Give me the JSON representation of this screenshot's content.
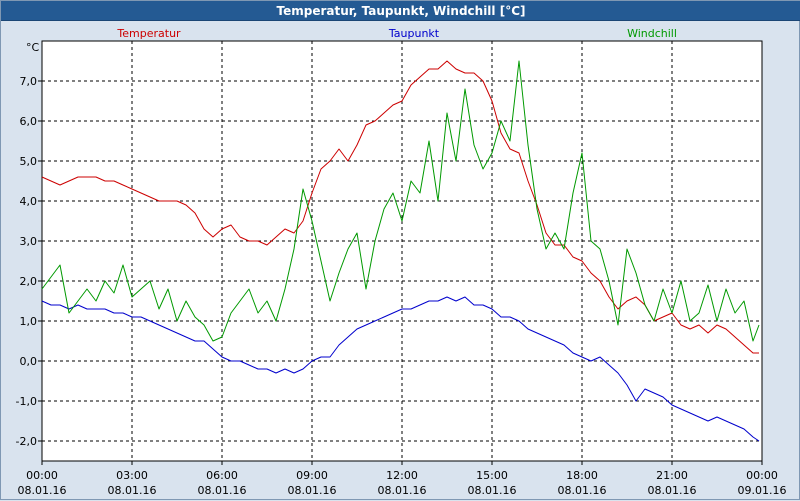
{
  "window": {
    "title": "Temperatur, Taupunkt, Windchill [°C]"
  },
  "colors": {
    "temperatur": "#cc0000",
    "taupunkt": "#0000cc",
    "windchill": "#009900",
    "titlebar": "#245a93",
    "frame_bg": "#d9e3ee",
    "plot_bg": "#ffffff",
    "grid": "#000000"
  },
  "chart_data": {
    "type": "line",
    "title": "Temperatur, Taupunkt, Windchill [°C]",
    "ylabel": "°C",
    "xlabel": "",
    "ylim": [
      -2.5,
      8.0
    ],
    "y_ticks": [
      -2,
      -1,
      0,
      1,
      2,
      3,
      4,
      5,
      6,
      7
    ],
    "y_tick_labels": [
      "-2,0",
      "-1,0",
      "0,0",
      "1,0",
      "2,0",
      "3,0",
      "4,0",
      "5,0",
      "6,0",
      "7,0"
    ],
    "x_ticks": [
      0,
      3,
      6,
      9,
      12,
      15,
      18,
      21,
      24
    ],
    "x_tick_time": [
      "00:00",
      "03:00",
      "06:00",
      "09:00",
      "12:00",
      "15:00",
      "18:00",
      "21:00",
      "00:00"
    ],
    "x_tick_date": [
      "08.01.16",
      "08.01.16",
      "08.01.16",
      "08.01.16",
      "08.01.16",
      "08.01.16",
      "08.01.16",
      "08.01.16",
      "09.01.16"
    ],
    "xlim": [
      0,
      24
    ],
    "grid": true,
    "legend_placement": "top",
    "series": [
      {
        "name": "Temperatur",
        "x": [
          0,
          0.3,
          0.6,
          0.9,
          1.2,
          1.5,
          1.8,
          2.1,
          2.4,
          2.7,
          3.0,
          3.3,
          3.6,
          3.9,
          4.2,
          4.5,
          4.8,
          5.1,
          5.4,
          5.7,
          6.0,
          6.3,
          6.6,
          6.9,
          7.2,
          7.5,
          7.8,
          8.1,
          8.4,
          8.7,
          9.0,
          9.3,
          9.6,
          9.9,
          10.2,
          10.5,
          10.8,
          11.1,
          11.4,
          11.7,
          12.0,
          12.3,
          12.6,
          12.9,
          13.2,
          13.5,
          13.8,
          14.1,
          14.4,
          14.7,
          15.0,
          15.3,
          15.6,
          15.9,
          16.2,
          16.5,
          16.8,
          17.1,
          17.4,
          17.7,
          18.0,
          18.3,
          18.6,
          18.9,
          19.2,
          19.5,
          19.8,
          20.1,
          20.4,
          20.7,
          21.0,
          21.3,
          21.6,
          21.9,
          22.2,
          22.5,
          22.8,
          23.1,
          23.4,
          23.7,
          23.9
        ],
        "values": [
          4.6,
          4.5,
          4.4,
          4.5,
          4.6,
          4.6,
          4.6,
          4.5,
          4.5,
          4.4,
          4.3,
          4.2,
          4.1,
          4.0,
          4.0,
          4.0,
          3.9,
          3.7,
          3.3,
          3.1,
          3.3,
          3.4,
          3.1,
          3.0,
          3.0,
          2.9,
          3.1,
          3.3,
          3.2,
          3.5,
          4.2,
          4.8,
          5.0,
          5.3,
          5.0,
          5.4,
          5.9,
          6.0,
          6.2,
          6.4,
          6.5,
          6.9,
          7.1,
          7.3,
          7.3,
          7.5,
          7.3,
          7.2,
          7.2,
          7.0,
          6.5,
          5.7,
          5.3,
          5.2,
          4.5,
          3.9,
          3.2,
          2.9,
          2.9,
          2.6,
          2.5,
          2.2,
          2.0,
          1.6,
          1.3,
          1.5,
          1.6,
          1.4,
          1.0,
          1.1,
          1.2,
          0.9,
          0.8,
          0.9,
          0.7,
          0.9,
          0.8,
          0.6,
          0.4,
          0.2,
          0.2
        ]
      },
      {
        "name": "Taupunkt",
        "x": [
          0,
          0.3,
          0.6,
          0.9,
          1.2,
          1.5,
          1.8,
          2.1,
          2.4,
          2.7,
          3.0,
          3.3,
          3.6,
          3.9,
          4.2,
          4.5,
          4.8,
          5.1,
          5.4,
          5.7,
          6.0,
          6.3,
          6.6,
          6.9,
          7.2,
          7.5,
          7.8,
          8.1,
          8.4,
          8.7,
          9.0,
          9.3,
          9.6,
          9.9,
          10.2,
          10.5,
          10.8,
          11.1,
          11.4,
          11.7,
          12.0,
          12.3,
          12.6,
          12.9,
          13.2,
          13.5,
          13.8,
          14.1,
          14.4,
          14.7,
          15.0,
          15.3,
          15.6,
          15.9,
          16.2,
          16.5,
          16.8,
          17.1,
          17.4,
          17.7,
          18.0,
          18.3,
          18.6,
          18.9,
          19.2,
          19.5,
          19.8,
          20.1,
          20.4,
          20.7,
          21.0,
          21.3,
          21.6,
          21.9,
          22.2,
          22.5,
          22.8,
          23.1,
          23.4,
          23.7,
          23.9
        ],
        "values": [
          1.5,
          1.4,
          1.4,
          1.3,
          1.4,
          1.3,
          1.3,
          1.3,
          1.2,
          1.2,
          1.1,
          1.1,
          1.0,
          0.9,
          0.8,
          0.7,
          0.6,
          0.5,
          0.5,
          0.3,
          0.1,
          0.0,
          0.0,
          -0.1,
          -0.2,
          -0.2,
          -0.3,
          -0.2,
          -0.3,
          -0.2,
          0.0,
          0.1,
          0.1,
          0.4,
          0.6,
          0.8,
          0.9,
          1.0,
          1.1,
          1.2,
          1.3,
          1.3,
          1.4,
          1.5,
          1.5,
          1.6,
          1.5,
          1.6,
          1.4,
          1.4,
          1.3,
          1.1,
          1.1,
          1.0,
          0.8,
          0.7,
          0.6,
          0.5,
          0.4,
          0.2,
          0.1,
          0.0,
          0.1,
          -0.1,
          -0.3,
          -0.6,
          -1.0,
          -0.7,
          -0.8,
          -0.9,
          -1.1,
          -1.2,
          -1.3,
          -1.4,
          -1.5,
          -1.4,
          -1.5,
          -1.6,
          -1.7,
          -1.9,
          -2.0
        ]
      },
      {
        "name": "Windchill",
        "x": [
          0,
          0.3,
          0.6,
          0.9,
          1.2,
          1.5,
          1.8,
          2.1,
          2.4,
          2.7,
          3.0,
          3.3,
          3.6,
          3.9,
          4.2,
          4.5,
          4.8,
          5.1,
          5.4,
          5.7,
          6.0,
          6.3,
          6.6,
          6.9,
          7.2,
          7.5,
          7.8,
          8.1,
          8.4,
          8.7,
          9.0,
          9.3,
          9.6,
          9.9,
          10.2,
          10.5,
          10.8,
          11.1,
          11.4,
          11.7,
          12.0,
          12.3,
          12.6,
          12.9,
          13.2,
          13.5,
          13.8,
          14.1,
          14.4,
          14.7,
          15.0,
          15.3,
          15.6,
          15.9,
          16.2,
          16.5,
          16.8,
          17.1,
          17.4,
          17.7,
          18.0,
          18.3,
          18.6,
          18.9,
          19.2,
          19.5,
          19.8,
          20.1,
          20.4,
          20.7,
          21.0,
          21.3,
          21.6,
          21.9,
          22.2,
          22.5,
          22.8,
          23.1,
          23.4,
          23.7,
          23.9
        ],
        "values": [
          1.8,
          2.1,
          2.4,
          1.2,
          1.5,
          1.8,
          1.5,
          2.0,
          1.7,
          2.4,
          1.6,
          1.8,
          2.0,
          1.3,
          1.8,
          1.0,
          1.5,
          1.1,
          0.9,
          0.5,
          0.6,
          1.2,
          1.5,
          1.8,
          1.2,
          1.5,
          1.0,
          1.8,
          2.8,
          4.3,
          3.5,
          2.5,
          1.5,
          2.2,
          2.8,
          3.2,
          1.8,
          3.0,
          3.8,
          4.2,
          3.5,
          4.5,
          4.2,
          5.5,
          4.0,
          6.2,
          5.0,
          6.8,
          5.4,
          4.8,
          5.2,
          6.0,
          5.5,
          7.5,
          5.4,
          3.8,
          2.8,
          3.2,
          2.8,
          4.2,
          5.2,
          3.0,
          2.8,
          2.0,
          0.9,
          2.8,
          2.2,
          1.4,
          1.0,
          1.8,
          1.2,
          2.0,
          1.0,
          1.2,
          1.9,
          1.0,
          1.8,
          1.2,
          1.5,
          0.5,
          0.9
        ]
      }
    ]
  }
}
